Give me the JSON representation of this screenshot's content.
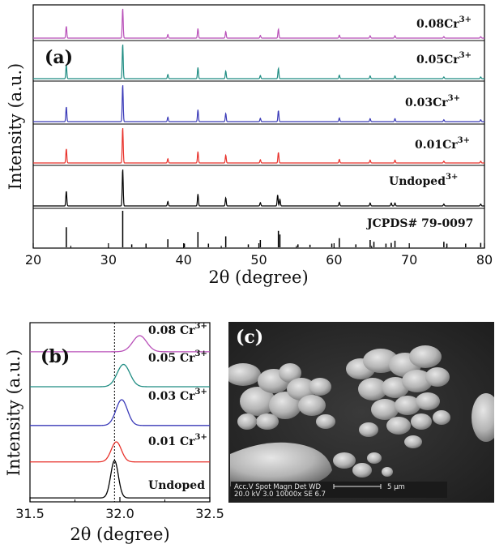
{
  "chart_data": [
    {
      "panel": "(a)",
      "type": "line",
      "xlabel": "2θ (degree)",
      "ylabel": "Intensity (a.u.)",
      "xlim": [
        20,
        80
      ],
      "x_ticks": [
        20,
        30,
        40,
        50,
        60,
        70,
        80
      ],
      "series": [
        {
          "name": "JCPDS# 79-0097",
          "color": "#000000",
          "style": "sticks",
          "peaks": [
            [
              24.4,
              0.55
            ],
            [
              31.9,
              1.0
            ],
            [
              33.1,
              0.08
            ],
            [
              35.0,
              0.1
            ],
            [
              37.9,
              0.22
            ],
            [
              40.1,
              0.1
            ],
            [
              41.9,
              0.42
            ],
            [
              43.3,
              0.1
            ],
            [
              45.6,
              0.3
            ],
            [
              48.6,
              0.08
            ],
            [
              50.2,
              0.2
            ],
            [
              52.6,
              0.45
            ],
            [
              52.8,
              0.35
            ],
            [
              55.2,
              0.08
            ],
            [
              56.8,
              0.07
            ],
            [
              59.7,
              0.1
            ],
            [
              60.7,
              0.25
            ],
            [
              62.9,
              0.08
            ],
            [
              64.8,
              0.2
            ],
            [
              65.3,
              0.15
            ],
            [
              66.9,
              0.1
            ],
            [
              67.6,
              0.12
            ],
            [
              68.1,
              0.18
            ],
            [
              74.6,
              0.15
            ],
            [
              75.0,
              0.1
            ],
            [
              77.5,
              0.1
            ],
            [
              79.5,
              0.12
            ]
          ]
        },
        {
          "name": "Undoped",
          "color": "#000000",
          "style": "pattern",
          "peaks": [
            [
              24.4,
              0.4
            ],
            [
              31.9,
              1.0
            ],
            [
              37.9,
              0.12
            ],
            [
              41.9,
              0.32
            ],
            [
              45.6,
              0.22
            ],
            [
              50.2,
              0.09
            ],
            [
              52.5,
              0.3
            ],
            [
              52.8,
              0.18
            ],
            [
              60.7,
              0.1
            ],
            [
              64.8,
              0.08
            ],
            [
              67.6,
              0.08
            ],
            [
              68.1,
              0.08
            ],
            [
              74.6,
              0.05
            ],
            [
              79.5,
              0.05
            ]
          ]
        },
        {
          "name": "0.01Cr3+",
          "color": "#e8312a",
          "style": "pattern",
          "peaks": [
            [
              24.4,
              0.4
            ],
            [
              31.9,
              1.0
            ],
            [
              37.9,
              0.12
            ],
            [
              41.9,
              0.32
            ],
            [
              45.6,
              0.22
            ],
            [
              50.2,
              0.09
            ],
            [
              52.6,
              0.3
            ],
            [
              60.7,
              0.1
            ],
            [
              64.8,
              0.08
            ],
            [
              68.1,
              0.08
            ],
            [
              74.6,
              0.05
            ],
            [
              79.5,
              0.05
            ]
          ]
        },
        {
          "name": "0.03Cr3+",
          "color": "#3a3ab8",
          "style": "pattern",
          "peaks": [
            [
              24.4,
              0.4
            ],
            [
              31.9,
              1.0
            ],
            [
              37.9,
              0.12
            ],
            [
              41.9,
              0.32
            ],
            [
              45.6,
              0.22
            ],
            [
              50.2,
              0.09
            ],
            [
              52.6,
              0.3
            ],
            [
              60.7,
              0.1
            ],
            [
              64.8,
              0.08
            ],
            [
              68.1,
              0.08
            ],
            [
              74.6,
              0.05
            ],
            [
              79.5,
              0.05
            ]
          ]
        },
        {
          "name": "0.05Cr3+",
          "color": "#1e8c82",
          "style": "pattern",
          "peaks": [
            [
              24.4,
              0.4
            ],
            [
              31.9,
              1.0
            ],
            [
              37.9,
              0.12
            ],
            [
              41.9,
              0.32
            ],
            [
              45.6,
              0.22
            ],
            [
              50.2,
              0.09
            ],
            [
              52.6,
              0.3
            ],
            [
              60.7,
              0.1
            ],
            [
              64.8,
              0.08
            ],
            [
              68.1,
              0.08
            ],
            [
              74.6,
              0.05
            ],
            [
              79.5,
              0.05
            ]
          ]
        },
        {
          "name": "0.08Cr3+",
          "color": "#b84fb8",
          "style": "pattern",
          "peaks": [
            [
              24.4,
              0.4
            ],
            [
              31.9,
              1.0
            ],
            [
              37.9,
              0.12
            ],
            [
              41.9,
              0.32
            ],
            [
              45.6,
              0.22
            ],
            [
              50.2,
              0.09
            ],
            [
              52.6,
              0.3
            ],
            [
              60.7,
              0.1
            ],
            [
              64.8,
              0.08
            ],
            [
              68.1,
              0.08
            ],
            [
              74.6,
              0.05
            ],
            [
              79.5,
              0.05
            ]
          ]
        }
      ],
      "labels": [
        "JCPDS# 79-0097",
        "Undoped",
        "0.01Cr",
        "0.03Cr",
        "0.05Cr",
        "0.08Cr"
      ],
      "label_superscript": "3+"
    },
    {
      "panel": "(b)",
      "type": "line",
      "xlabel": "2θ (degree)",
      "ylabel": "Intensity (a.u.)",
      "xlim": [
        31.5,
        32.5
      ],
      "x_ticks": [
        31.5,
        32.0,
        32.5
      ],
      "x_tick_labels": [
        "31.5",
        "32.0",
        "32.5"
      ],
      "reference_line_x": 31.97,
      "series": [
        {
          "name": "Undoped",
          "color": "#000000",
          "center": 31.97,
          "width": 0.03,
          "height": 1.0,
          "baseline": 0.04
        },
        {
          "name": "0.01 Cr3+",
          "color": "#e8312a",
          "center": 31.98,
          "width": 0.04,
          "height": 0.55,
          "baseline": 0.05
        },
        {
          "name": "0.03 Cr3+",
          "color": "#3a3ab8",
          "center": 32.01,
          "width": 0.045,
          "height": 0.6,
          "baseline": 0.06
        },
        {
          "name": "0.05 Cr3+",
          "color": "#1e8c82",
          "center": 32.02,
          "width": 0.05,
          "height": 0.55,
          "baseline": 0.06
        },
        {
          "name": "0.08 Cr3+",
          "color": "#b84fb8",
          "center": 32.11,
          "width": 0.055,
          "height": 0.55,
          "baseline": 0.06
        }
      ],
      "labels": [
        "Undoped",
        "0.01 Cr",
        "0.03 Cr",
        "0.05 Cr",
        "0.08 Cr"
      ],
      "label_superscript": "3+"
    }
  ],
  "sem_panel": {
    "letter": "(c)",
    "info_line1": "Acc.V   Spot Magn    Det  WD",
    "info_line2": "20.0 kV 3.0   10000x   SE   6.7",
    "scale_bar_label": "5 μm"
  }
}
